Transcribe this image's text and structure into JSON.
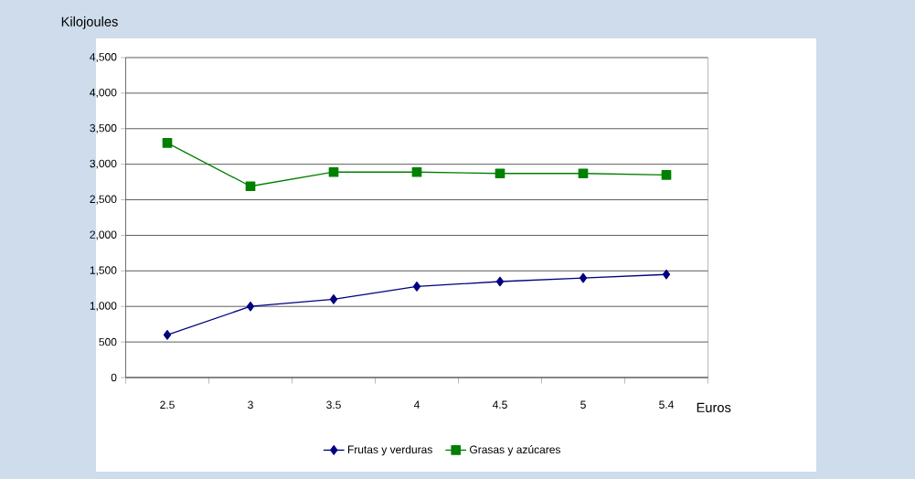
{
  "chart_data": {
    "type": "line",
    "xlabel": "Euros",
    "ylabel": "Kilojoules",
    "categories": [
      "2.5",
      "3",
      "3.5",
      "4",
      "4.5",
      "5",
      "5.4"
    ],
    "series": [
      {
        "name": "Frutas y  verduras",
        "color": "#000080",
        "marker": "diamond",
        "values": [
          600,
          1000,
          1100,
          1280,
          1350,
          1400,
          1450
        ]
      },
      {
        "name": "Grasas y  azúcares",
        "color": "#008000",
        "marker": "square",
        "values": [
          3300,
          2690,
          2890,
          2890,
          2870,
          2870,
          2850
        ]
      }
    ],
    "ylim": [
      0,
      4500
    ],
    "yticks": [
      0,
      500,
      {
        "value": 1000,
        "label": "1,000"
      },
      {
        "value": 1500,
        "label": "1,500"
      },
      {
        "value": 2000,
        "label": "2,000"
      },
      {
        "value": 2500,
        "label": "2,500"
      },
      {
        "value": 3000,
        "label": "3,000"
      },
      {
        "value": 3500,
        "label": "3,500"
      },
      {
        "value": 4000,
        "label": "4,000"
      },
      {
        "value": 4500,
        "label": "4,500"
      }
    ],
    "grid": "y",
    "legend": "bottom"
  }
}
